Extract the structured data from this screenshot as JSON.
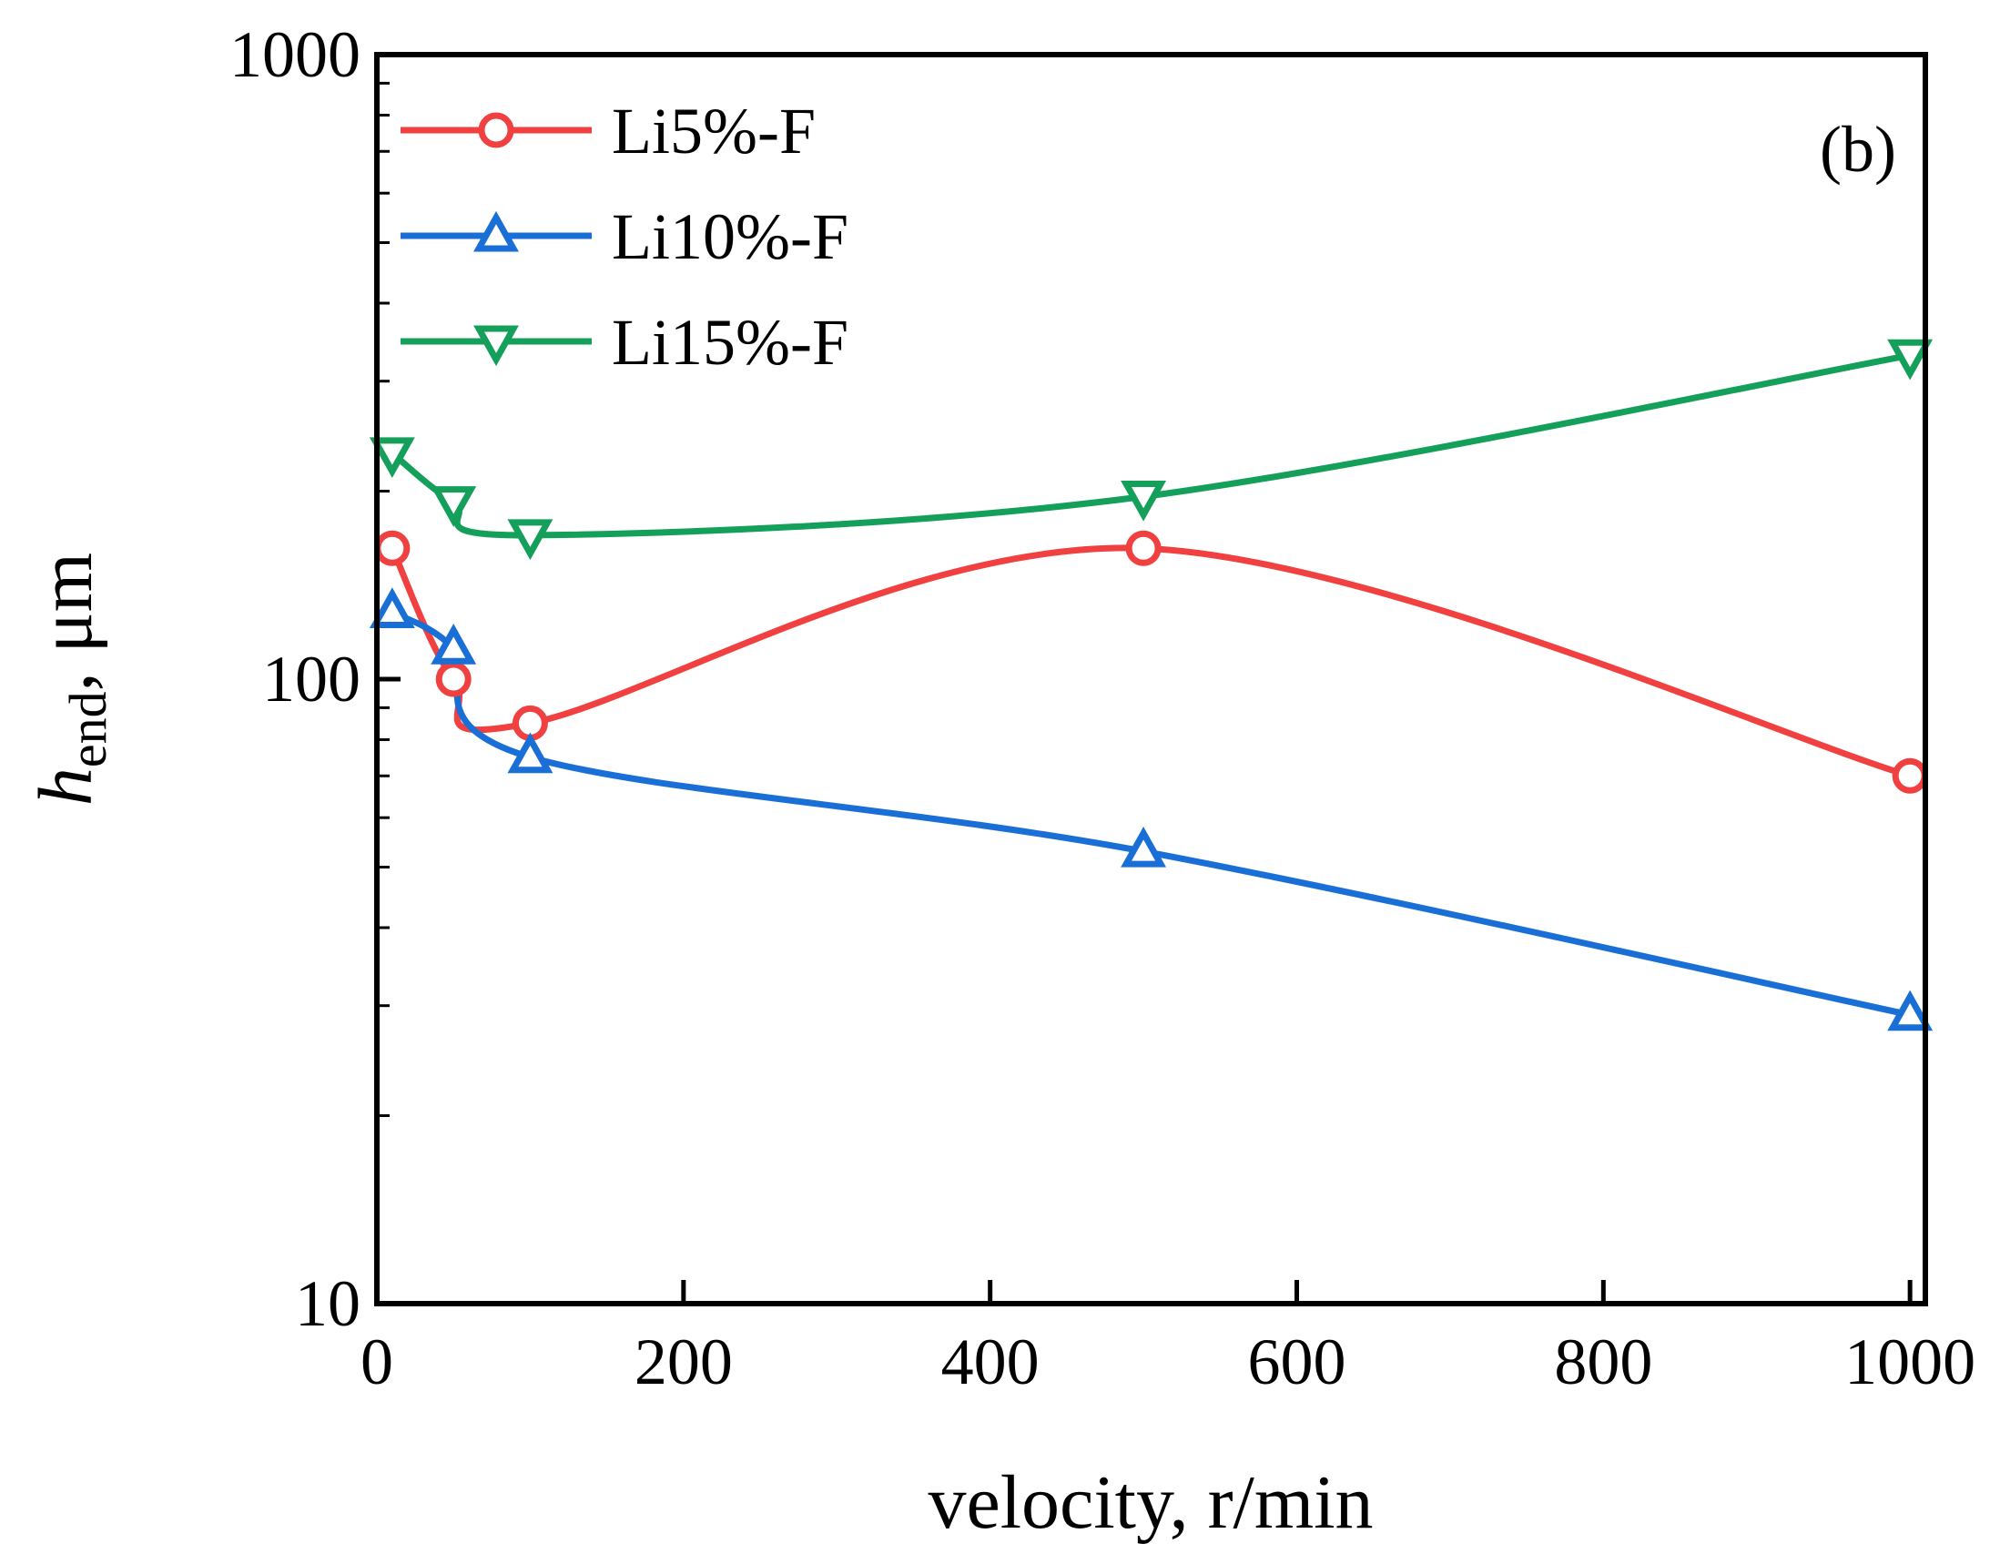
{
  "chart_data": {
    "type": "line",
    "title": "",
    "panel_label": "(b)",
    "xlabel": "velocity, r/min",
    "ylabel": {
      "main": "h",
      "subscript": "end",
      "suffix": ", μm"
    },
    "xlim": [
      0,
      1010
    ],
    "ylim": [
      10,
      1000
    ],
    "yscale": "log",
    "xticks": [
      0,
      200,
      400,
      600,
      800,
      1000
    ],
    "xtick_labels": [
      "0",
      "200",
      "400",
      "600",
      "800",
      "1000"
    ],
    "yticks": [
      10,
      100,
      1000
    ],
    "ytick_labels": [
      "10",
      "100",
      "1000"
    ],
    "legend_position": "top-left",
    "x": [
      10,
      50,
      100,
      500,
      1000
    ],
    "series": [
      {
        "name": "Li5%-F",
        "color": "#f04040",
        "marker": "circle",
        "values": [
          162,
          100,
          85,
          162,
          70
        ]
      },
      {
        "name": "Li10%-F",
        "color": "#1a6fd6",
        "marker": "triangle-up",
        "values": [
          128,
          112,
          75,
          53,
          29
        ]
      },
      {
        "name": "Li15%-F",
        "color": "#14a05a",
        "marker": "triangle-down",
        "values": [
          230,
          192,
          170,
          196,
          330
        ]
      }
    ]
  }
}
